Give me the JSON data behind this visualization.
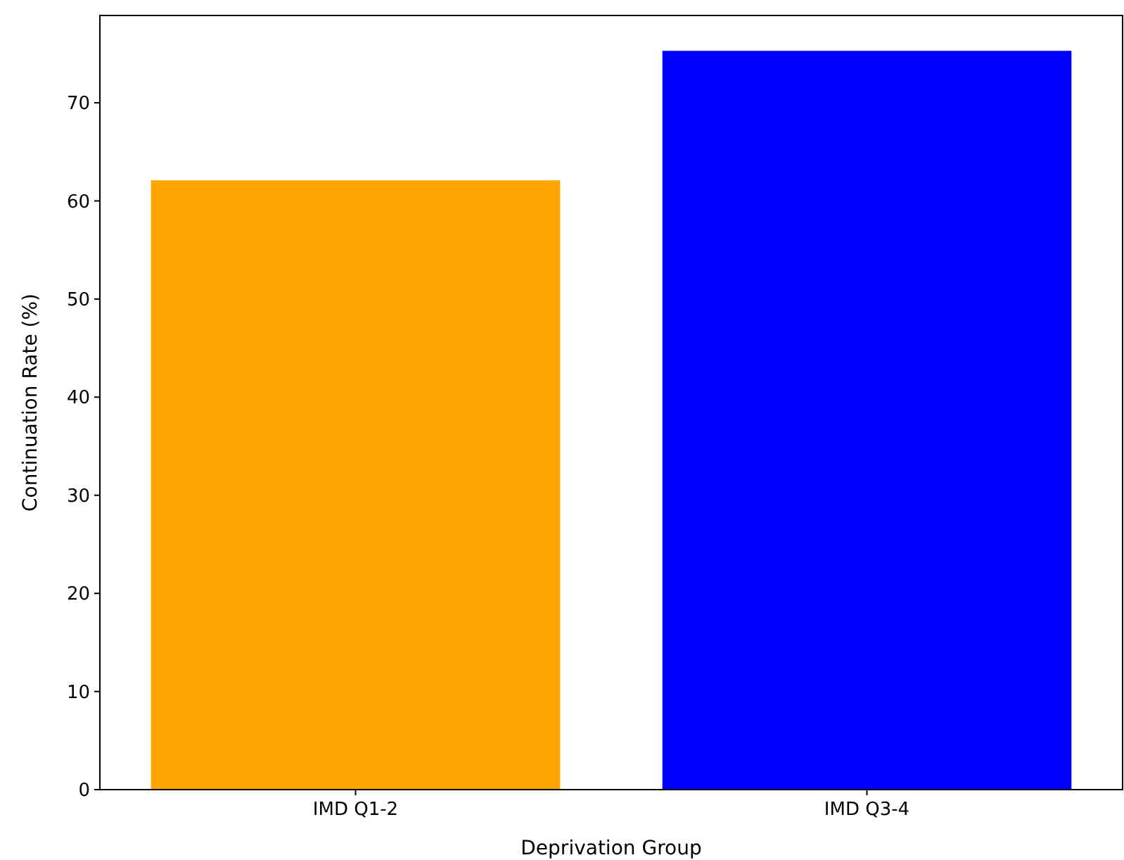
{
  "chart_data": {
    "type": "bar",
    "xlabel": "Deprivation Group",
    "ylabel": "Continuation Rate (%)",
    "categories": [
      "IMD Q1-2",
      "IMD Q3-4"
    ],
    "values": [
      62.1,
      75.3
    ],
    "colors": [
      "#ffa500",
      "#0000ff"
    ],
    "ylim": [
      0,
      78.9
    ],
    "yticks": [
      0,
      10,
      20,
      30,
      40,
      50,
      60,
      70
    ],
    "grid": false
  }
}
